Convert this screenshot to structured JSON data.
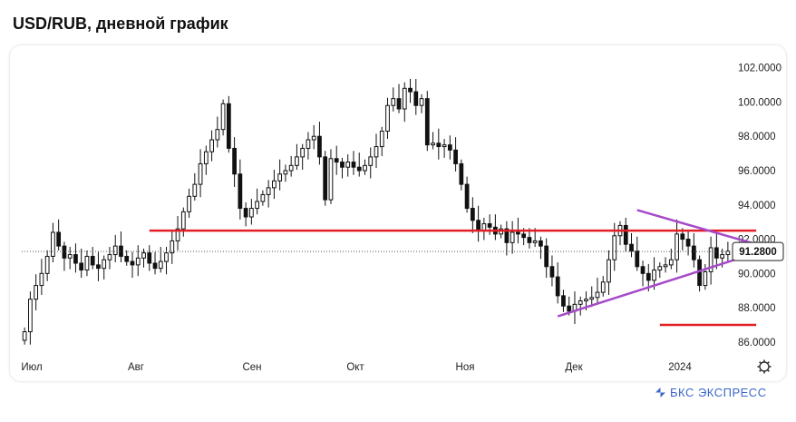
{
  "title": "USD/RUB, дневной график",
  "brand": {
    "text": "БКС ЭКСПРЕСС",
    "icon": "bks-logo-icon"
  },
  "settings_icon": "gear-icon",
  "colors": {
    "up": "#111111",
    "down": "#111111",
    "support_resistance": "#e31e24",
    "triangle": "#a64ac9",
    "last_price_line": "#555555"
  },
  "chart_data": {
    "type": "candlestick",
    "title": "USD/RUB, дневной график",
    "x_ticks": [
      "Июл",
      "Авг",
      "Сен",
      "Окт",
      "Ноя",
      "Дек",
      "2024"
    ],
    "y_ticks": [
      "102.0000",
      "100.0000",
      "98.0000",
      "96.0000",
      "94.0000",
      "92.0000",
      "90.0000",
      "88.0000",
      "86.0000"
    ],
    "ylim": [
      85.2,
      103.2
    ],
    "last_price": 91.28,
    "last_price_label": "91.2800",
    "close_series": [
      86.6,
      88.5,
      89.3,
      90.0,
      91.0,
      92.4,
      91.6,
      90.9,
      91.1,
      90.6,
      90.2,
      91.0,
      90.5,
      90.3,
      90.8,
      91.1,
      91.6,
      91.0,
      90.7,
      90.5,
      90.9,
      91.2,
      90.6,
      90.3,
      90.7,
      91.2,
      91.9,
      92.6,
      93.6,
      94.5,
      95.2,
      96.4,
      97.1,
      97.8,
      98.4,
      99.9,
      97.3,
      95.8,
      93.8,
      93.3,
      93.8,
      94.2,
      94.6,
      95.0,
      95.4,
      95.8,
      96.0,
      96.3,
      96.8,
      97.3,
      97.8,
      98.0,
      96.8,
      94.3,
      96.7,
      96.5,
      96.2,
      96.5,
      96.2,
      96.0,
      96.3,
      96.8,
      97.4,
      98.3,
      99.8,
      100.2,
      99.6,
      100.8,
      100.6,
      99.8,
      100.2,
      97.5,
      97.6,
      97.4,
      97.5,
      97.2,
      96.4,
      95.2,
      93.8,
      93.1,
      92.5,
      92.9,
      92.7,
      92.3,
      92.6,
      91.8,
      92.4,
      92.3,
      92.1,
      91.8,
      91.9,
      91.6,
      90.4,
      89.8,
      88.7,
      88.1,
      87.8,
      88.2,
      88.4,
      88.5,
      88.6,
      88.9,
      89.5,
      90.8,
      92.2,
      92.8,
      91.7,
      91.3,
      90.4,
      90.0,
      89.6,
      90.2,
      90.4,
      90.5,
      90.8,
      92.3,
      92.0,
      91.6,
      90.8,
      89.3,
      90.1,
      91.5,
      90.9,
      91.1,
      91.3
    ],
    "support_resistance_lines": [
      {
        "x_start_index": 22,
        "x_end_index": 129,
        "y": 92.5
      },
      {
        "x_start_index": 112,
        "x_end_index": 129,
        "y": 87.0
      }
    ],
    "triangle_lines": [
      {
        "from": {
          "index": 108,
          "y": 93.7
        },
        "to": {
          "index": 129,
          "y": 91.7
        }
      },
      {
        "from": {
          "index": 94,
          "y": 87.5
        },
        "to": {
          "index": 129,
          "y": 91.2
        }
      }
    ],
    "legend": "none",
    "grid": false
  }
}
